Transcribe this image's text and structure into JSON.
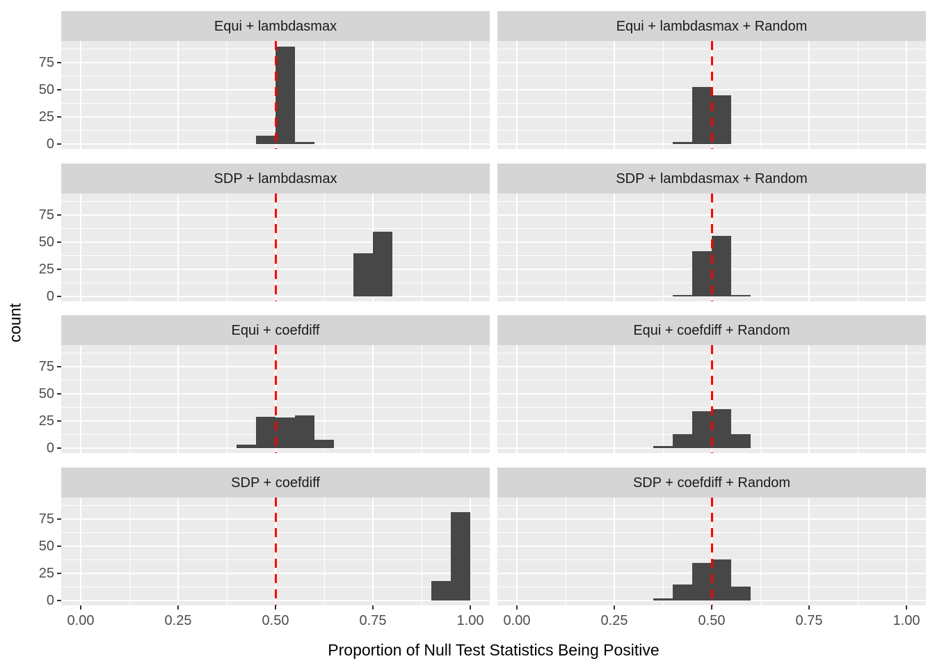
{
  "figure": {
    "background": "#FFFFFF",
    "panel_bg": "#EBEBEB",
    "strip_bg": "#D5D5D5",
    "strip_text_color": "#1A1A1A",
    "grid_color": "#FFFFFF",
    "bar_color": "#474747",
    "refline_color": "#FF0000",
    "tick_mark_color": "#333333",
    "tick_label_color": "#4D4D4D",
    "axis_title_color": "#000000"
  },
  "chart_data": {
    "type": "bar",
    "subtype": "faceted-histogram",
    "title": "",
    "xlabel": "Proportion of Null Test Statistics Being Positive",
    "ylabel": "count",
    "x_tick_labels": [
      "0.00",
      "0.25",
      "0.50",
      "0.75",
      "1.00"
    ],
    "x_tick_values": [
      0,
      0.25,
      0.5,
      0.75,
      1.0
    ],
    "x_minor_values": [
      0.125,
      0.375,
      0.625,
      0.875
    ],
    "y_tick_labels": [
      "0",
      "25",
      "50",
      "75"
    ],
    "y_tick_values": [
      0,
      25,
      50,
      75
    ],
    "y_minor_values": [
      12.5,
      37.5,
      62.5,
      87.5
    ],
    "xlim": [
      -0.05,
      1.05
    ],
    "ylim": [
      -4.5,
      95.2
    ],
    "bin_width": 0.05,
    "reference_line_x": 0.5,
    "grid": "on",
    "legend": "none",
    "facets": [
      {
        "label": "Equi + lambdasmax",
        "row": 0,
        "col": 0,
        "bins": [
          {
            "x0": 0.45,
            "count": 8
          },
          {
            "x0": 0.5,
            "count": 90
          },
          {
            "x0": 0.55,
            "count": 2
          }
        ]
      },
      {
        "label": "Equi + lambdasmax + Random",
        "row": 0,
        "col": 1,
        "bins": [
          {
            "x0": 0.4,
            "count": 2
          },
          {
            "x0": 0.45,
            "count": 53
          },
          {
            "x0": 0.5,
            "count": 45
          }
        ]
      },
      {
        "label": "SDP + lambdasmax",
        "row": 1,
        "col": 0,
        "bins": [
          {
            "x0": 0.7,
            "count": 40
          },
          {
            "x0": 0.75,
            "count": 60
          }
        ]
      },
      {
        "label": "SDP + lambdasmax + Random",
        "row": 1,
        "col": 1,
        "bins": [
          {
            "x0": 0.4,
            "count": 1
          },
          {
            "x0": 0.45,
            "count": 42
          },
          {
            "x0": 0.5,
            "count": 56
          },
          {
            "x0": 0.55,
            "count": 1
          }
        ]
      },
      {
        "label": "Equi + coefdiff",
        "row": 2,
        "col": 0,
        "bins": [
          {
            "x0": 0.4,
            "count": 3
          },
          {
            "x0": 0.45,
            "count": 29
          },
          {
            "x0": 0.5,
            "count": 28
          },
          {
            "x0": 0.55,
            "count": 30
          },
          {
            "x0": 0.6,
            "count": 8
          }
        ]
      },
      {
        "label": "Equi + coefdiff + Random",
        "row": 2,
        "col": 1,
        "bins": [
          {
            "x0": 0.35,
            "count": 2
          },
          {
            "x0": 0.4,
            "count": 13
          },
          {
            "x0": 0.45,
            "count": 34
          },
          {
            "x0": 0.5,
            "count": 36
          },
          {
            "x0": 0.55,
            "count": 13
          }
        ]
      },
      {
        "label": "SDP + coefdiff",
        "row": 3,
        "col": 0,
        "bins": [
          {
            "x0": 0.9,
            "count": 18
          },
          {
            "x0": 0.95,
            "count": 82
          }
        ]
      },
      {
        "label": "SDP + coefdiff + Random",
        "row": 3,
        "col": 1,
        "bins": [
          {
            "x0": 0.35,
            "count": 2
          },
          {
            "x0": 0.4,
            "count": 15
          },
          {
            "x0": 0.45,
            "count": 35
          },
          {
            "x0": 0.5,
            "count": 38
          },
          {
            "x0": 0.55,
            "count": 13
          }
        ]
      }
    ]
  }
}
